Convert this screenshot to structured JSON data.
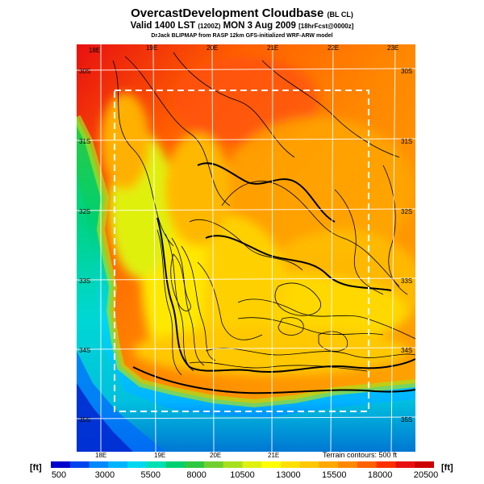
{
  "header": {
    "title_main": "OvercastDevelopment Cloudbase",
    "title_tag": "(BL CL)",
    "line2_a": "Valid 1400 LST",
    "line2_b": "(1200Z)",
    "line2_c": "MON 3 Aug 2009",
    "line2_d": "[18hrFcst@0000z]",
    "line3": "DrJack BLIPMAP from RASP 12km GFS-initialized WRF-ARW model"
  },
  "map": {
    "lon_labels_top": [
      "18E",
      "19E",
      "20E",
      "21E",
      "22E",
      "23E"
    ],
    "lon_labels_bottom": [
      "18E",
      "19E",
      "20E",
      "21E"
    ],
    "lat_labels_left": [
      "30S",
      "31S",
      "32S",
      "33S",
      "34S",
      "35S"
    ],
    "lat_labels_right": [
      "30S",
      "31S",
      "32S",
      "33S",
      "34S",
      "35S"
    ],
    "terrain_note": "Terrain contours: 500 ft"
  },
  "colorbar": {
    "unit_left": "[ft]",
    "unit_right": "[ft]",
    "labels": [
      "500",
      "3000",
      "5500",
      "8000",
      "10500",
      "13000",
      "15500",
      "18000",
      "20500"
    ],
    "colors": [
      "#0000cd",
      "#0044ee",
      "#0088ff",
      "#00b4ff",
      "#00d8f0",
      "#00e0b4",
      "#00d070",
      "#30c840",
      "#70d030",
      "#a8e020",
      "#e0f010",
      "#ffff00",
      "#ffe000",
      "#ffc800",
      "#ffa800",
      "#ff8800",
      "#ff6000",
      "#ff3000",
      "#e81010",
      "#cc0000"
    ]
  }
}
